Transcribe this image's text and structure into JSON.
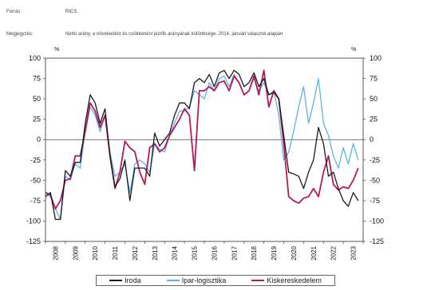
{
  "source": {
    "label": "Forrás:",
    "value": "RICS."
  },
  "note": {
    "label": "Megjegyzés:",
    "value": "Nettó arány, a növekedést és csökkenést jelzők arányának különbsége. 2014. januári válaszok alapján"
  },
  "chart_data": {
    "type": "line",
    "y_unit_left": "%",
    "y_unit_right": "%",
    "ylim": [
      -125,
      100
    ],
    "yticks": [
      100,
      75,
      50,
      25,
      0,
      -25,
      -50,
      -75,
      -100,
      -125
    ],
    "x_labels": [
      "2008",
      "2009",
      "2010",
      "2011",
      "2012",
      "2013",
      "2014",
      "2015",
      "2016",
      "2017",
      "2018",
      "2019",
      "2020",
      "2021",
      "2022",
      "2023"
    ],
    "xlim": [
      2008,
      2024
    ],
    "grid": false,
    "legend_position": "bottom",
    "colors": {
      "Iroda": "#1a1a1a",
      "Ipar-logisztika": "#5ab4e6",
      "Kiskereskedelem": "#b5195b"
    },
    "series": [
      {
        "name": "Iroda",
        "x": [
          2008.0,
          2008.25,
          2008.5,
          2008.75,
          2009.0,
          2009.25,
          2009.5,
          2009.75,
          2010.0,
          2010.25,
          2010.5,
          2010.75,
          2011.0,
          2011.25,
          2011.5,
          2011.75,
          2012.0,
          2012.25,
          2012.5,
          2012.75,
          2013.0,
          2013.25,
          2013.5,
          2013.75,
          2014.0,
          2014.25,
          2014.5,
          2014.75,
          2015.0,
          2015.25,
          2015.5,
          2015.75,
          2016.0,
          2016.25,
          2016.5,
          2016.75,
          2017.0,
          2017.25,
          2017.5,
          2017.75,
          2018.0,
          2018.25,
          2018.5,
          2018.75,
          2019.0,
          2019.25,
          2019.5,
          2019.75,
          2020.0,
          2020.25,
          2020.5,
          2020.75,
          2021.0,
          2021.25,
          2021.5,
          2021.75,
          2022.0,
          2022.25,
          2022.5,
          2022.75,
          2023.0,
          2023.25,
          2023.5,
          2023.75
        ],
        "values": [
          -70,
          -65,
          -98,
          -98,
          -38,
          -45,
          -28,
          -28,
          20,
          55,
          45,
          20,
          38,
          -20,
          -58,
          -48,
          -25,
          -75,
          -35,
          -35,
          -35,
          -45,
          8,
          -8,
          0,
          8,
          30,
          45,
          45,
          38,
          70,
          75,
          70,
          80,
          65,
          82,
          85,
          75,
          85,
          80,
          65,
          70,
          82,
          65,
          75,
          55,
          58,
          50,
          5,
          -40,
          -42,
          -45,
          -60,
          -40,
          -25,
          15,
          -5,
          -45,
          -40,
          -60,
          -75,
          -82,
          -65,
          -75
        ]
      },
      {
        "name": "Ipar-logisztika",
        "x": [
          2008.0,
          2008.25,
          2008.5,
          2008.75,
          2009.0,
          2009.25,
          2009.5,
          2009.75,
          2010.0,
          2010.25,
          2010.5,
          2010.75,
          2011.0,
          2011.25,
          2011.5,
          2011.75,
          2012.0,
          2012.25,
          2012.5,
          2012.75,
          2013.0,
          2013.25,
          2013.5,
          2013.75,
          2014.0,
          2014.25,
          2014.5,
          2014.75,
          2015.0,
          2015.25,
          2015.5,
          2015.75,
          2016.0,
          2016.25,
          2016.5,
          2016.75,
          2017.0,
          2017.25,
          2017.5,
          2017.75,
          2018.0,
          2018.25,
          2018.5,
          2018.75,
          2019.0,
          2019.25,
          2019.5,
          2019.75,
          2020.0,
          2020.25,
          2020.5,
          2020.75,
          2021.0,
          2021.25,
          2021.5,
          2021.75,
          2022.0,
          2022.25,
          2022.5,
          2022.75,
          2023.0,
          2023.25,
          2023.5,
          2023.75
        ],
        "values": [
          -65,
          -70,
          -85,
          -98,
          -45,
          -50,
          -30,
          -35,
          10,
          40,
          30,
          10,
          30,
          -15,
          -45,
          -40,
          -30,
          -65,
          -30,
          -25,
          -30,
          -40,
          -5,
          -12,
          -15,
          5,
          20,
          35,
          35,
          40,
          60,
          55,
          50,
          70,
          60,
          75,
          78,
          65,
          80,
          70,
          55,
          60,
          75,
          60,
          70,
          55,
          60,
          30,
          -25,
          -15,
          10,
          40,
          65,
          20,
          45,
          75,
          20,
          5,
          -20,
          -35,
          -10,
          -30,
          -5,
          -25
        ]
      },
      {
        "name": "Kiskereskedelem",
        "x": [
          2008.0,
          2008.25,
          2008.5,
          2008.75,
          2009.0,
          2009.25,
          2009.5,
          2009.75,
          2010.0,
          2010.25,
          2010.5,
          2010.75,
          2011.0,
          2011.25,
          2011.5,
          2011.75,
          2012.0,
          2012.25,
          2012.5,
          2012.75,
          2013.0,
          2013.25,
          2013.5,
          2013.75,
          2014.0,
          2014.25,
          2014.5,
          2014.75,
          2015.0,
          2015.25,
          2015.5,
          2015.75,
          2016.0,
          2016.25,
          2016.5,
          2016.75,
          2017.0,
          2017.25,
          2017.5,
          2017.75,
          2018.0,
          2018.25,
          2018.5,
          2018.75,
          2019.0,
          2019.25,
          2019.5,
          2019.75,
          2020.0,
          2020.25,
          2020.5,
          2020.75,
          2021.0,
          2021.25,
          2021.5,
          2021.75,
          2022.0,
          2022.25,
          2022.5,
          2022.75,
          2023.0,
          2023.25,
          2023.5,
          2023.75
        ],
        "values": [
          -65,
          -68,
          -85,
          -75,
          -50,
          -48,
          -20,
          -20,
          10,
          45,
          35,
          15,
          30,
          -20,
          -60,
          -40,
          -2,
          -10,
          -15,
          -40,
          -55,
          -10,
          -5,
          -15,
          -10,
          5,
          15,
          25,
          38,
          30,
          -38,
          60,
          60,
          65,
          60,
          70,
          72,
          60,
          78,
          70,
          55,
          60,
          78,
          55,
          85,
          40,
          60,
          50,
          -5,
          -70,
          -75,
          -78,
          -72,
          -70,
          -60,
          -70,
          -40,
          -20,
          -55,
          -62,
          -58,
          -60,
          -50,
          -35
        ]
      }
    ]
  }
}
